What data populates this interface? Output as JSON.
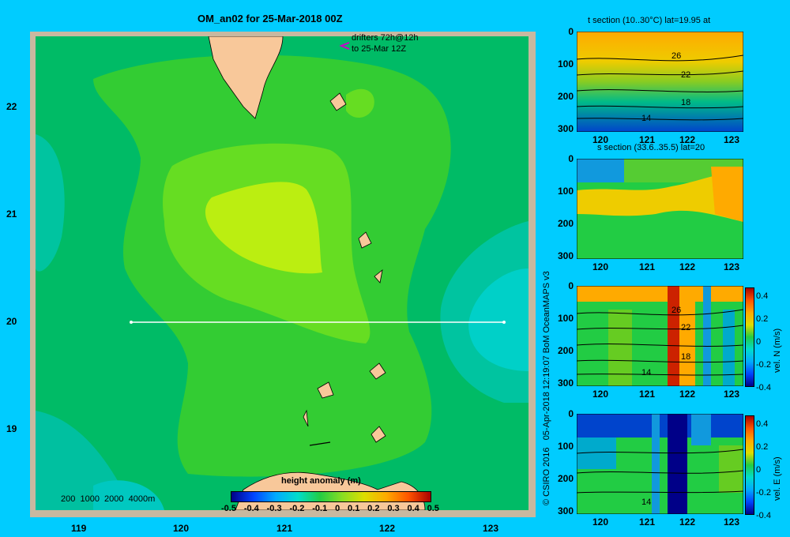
{
  "map": {
    "title": "OM_an02 for 25-Mar-2018 00Z",
    "drifter_line1": "drifters 72h@12h",
    "drifter_line2": "to 25-Mar 12Z",
    "lon_ticks": [
      "119",
      "120",
      "121",
      "122",
      "123"
    ],
    "lat_ticks": [
      "22",
      "21",
      "20",
      "19"
    ],
    "depth_legend": "200  1000  2000  4000m",
    "colorbar_title": "height anomaly  (m)",
    "colorbar_ticks": [
      "-0.5",
      "-0.4",
      "-0.3",
      "-0.2",
      "-0.1",
      "0",
      "0.1",
      "0.2",
      "0.3",
      "0.4",
      "0.5"
    ],
    "section_line_lat": "20",
    "colors": {
      "background": "#00ccff",
      "land": "#f8c89a",
      "frame": "#c8b8a0"
    }
  },
  "panels": [
    {
      "title": "t section (10..30°C) lat=19.95 at",
      "xticks": [
        "120",
        "121",
        "122",
        "123"
      ],
      "yticks": [
        "0",
        "100",
        "200",
        "300"
      ],
      "contour_labels": [
        "26",
        "22",
        "18",
        "14"
      ],
      "colorbar": null
    },
    {
      "title": "s section (33.6..35.5) lat=20",
      "xticks": [
        "120",
        "121",
        "122",
        "123"
      ],
      "yticks": [
        "0",
        "100",
        "200",
        "300"
      ],
      "contour_labels": [],
      "colorbar": null
    },
    {
      "title": "",
      "xticks": [
        "120",
        "121",
        "122",
        "123"
      ],
      "yticks": [
        "0",
        "100",
        "200",
        "300"
      ],
      "contour_labels": [
        "26",
        "22",
        "18",
        "14"
      ],
      "colorbar": {
        "label": "vel. N (m/s)",
        "ticks": [
          "0.4",
          "0.2",
          "0",
          "-0.2",
          "-0.4"
        ]
      }
    },
    {
      "title": "",
      "xticks": [
        "120",
        "121",
        "122",
        "123"
      ],
      "yticks": [
        "0",
        "100",
        "200",
        "300"
      ],
      "contour_labels": [
        "14"
      ],
      "colorbar": {
        "label": "vel. E (m/s)",
        "ticks": [
          "0.4",
          "0.2",
          "0",
          "-0.2",
          "-0.4"
        ]
      }
    }
  ],
  "credit": "© CSIRO 2016   05-Apr-2018 12:19:07 BoM OceanMAPS v3"
}
